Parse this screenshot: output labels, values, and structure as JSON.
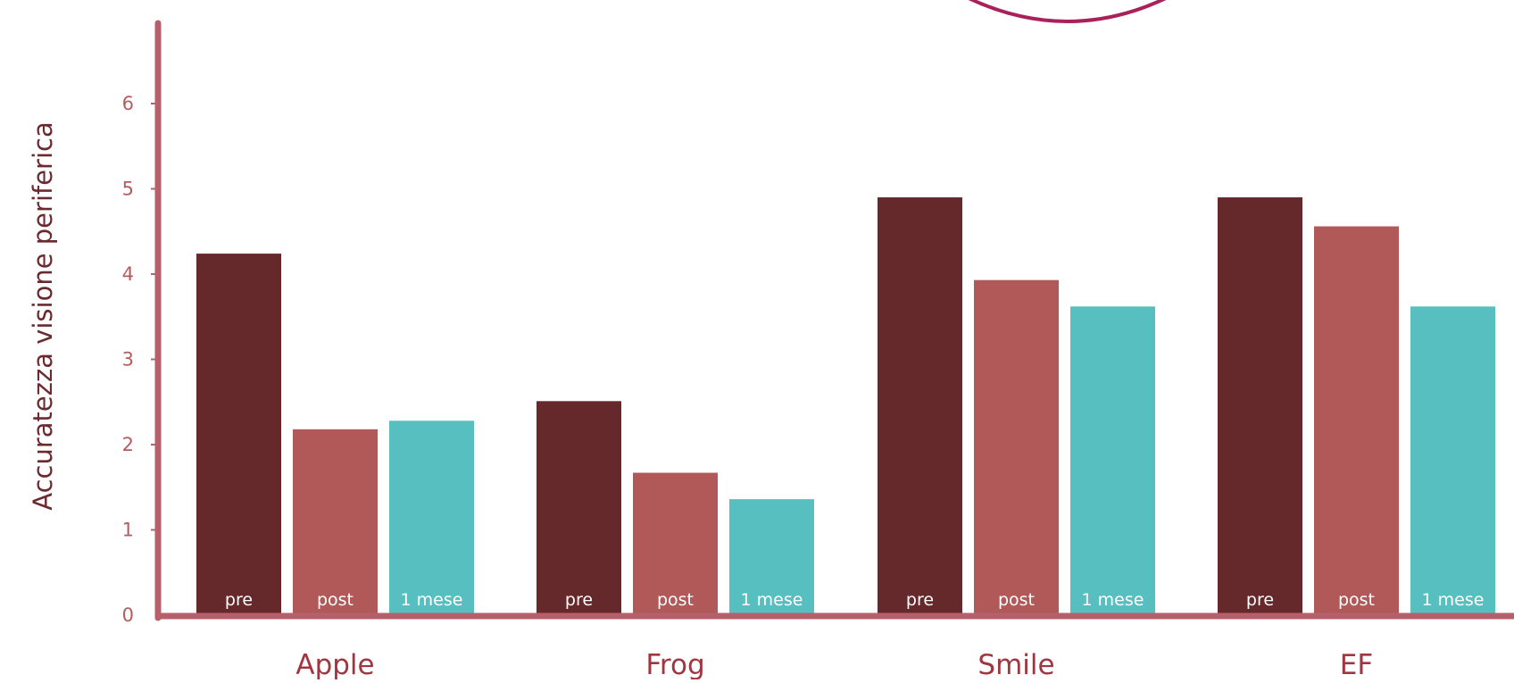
{
  "chart_data": {
    "type": "bar",
    "title": "",
    "xlabel": "",
    "ylabel": "Accuratezza visione periferica",
    "ylim": [
      0,
      7
    ],
    "yticks": [
      0,
      1,
      2,
      3,
      4,
      5,
      6
    ],
    "categories": [
      "Apple",
      "Frog",
      "Smile",
      "EF"
    ],
    "series": [
      {
        "name": "pre",
        "values": [
          4.24,
          2.51,
          4.9,
          4.9
        ]
      },
      {
        "name": "post",
        "values": [
          2.18,
          1.67,
          3.93,
          4.56
        ]
      },
      {
        "name": "1 mese",
        "values": [
          2.28,
          1.36,
          3.62,
          3.62
        ]
      }
    ],
    "legend": "none",
    "grid": false,
    "colors": {
      "pre": "#65282b",
      "post": "#b15959",
      "1 mese": "#57bfbf",
      "axis": "#b5606a",
      "decor_arc": "#a8215a"
    }
  }
}
